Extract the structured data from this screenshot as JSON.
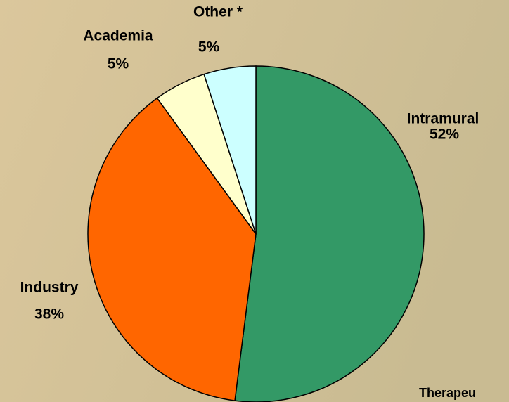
{
  "chart_data": {
    "type": "pie",
    "categories": [
      "Intramural",
      "Industry",
      "Academia",
      "Other *"
    ],
    "values": [
      52,
      38,
      5,
      5
    ],
    "value_labels": [
      "52%",
      "38%",
      "5%",
      "5%"
    ],
    "colors": [
      "#339966",
      "#ff6600",
      "#ffffcc",
      "#ccffff"
    ],
    "annotation": "Therapeu"
  }
}
